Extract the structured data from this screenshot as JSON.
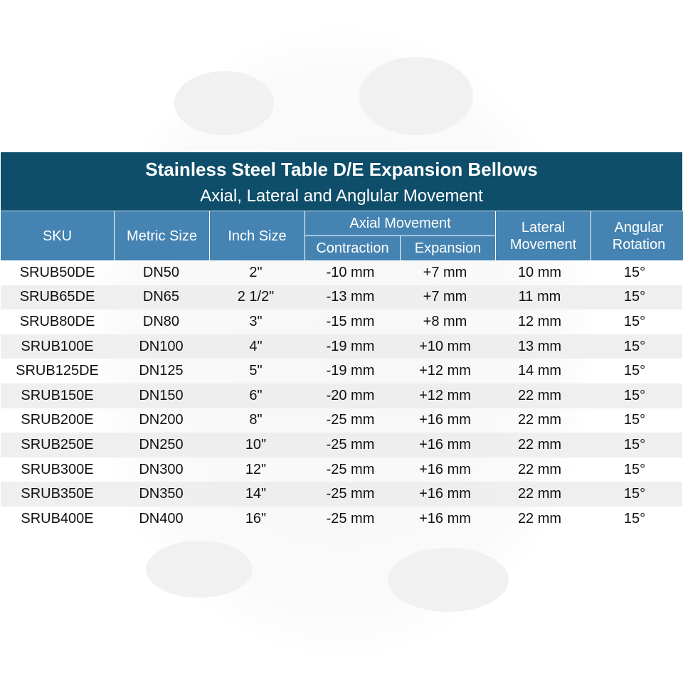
{
  "title": "Stainless Steel Table D/E Expansion Bellows",
  "subtitle": "Axial, Lateral and Anglular Movement",
  "colors": {
    "title_bg": "#0e4e6a",
    "header_bg": "#4584b2",
    "alt_row": "#ececec"
  },
  "headers": {
    "sku": "SKU",
    "metric": "Metric Size",
    "inch": "Inch Size",
    "axial": "Axial Movement",
    "contraction": "Contraction",
    "expansion": "Expansion",
    "lateral": "Lateral Movement",
    "angular": "Angular Rotation"
  },
  "rows": [
    [
      "SRUB50DE",
      "DN50",
      "2\"",
      "-10 mm",
      "+7 mm",
      "10 mm",
      "15°"
    ],
    [
      "SRUB65DE",
      "DN65",
      "2 1/2\"",
      "-13 mm",
      "+7 mm",
      "11 mm",
      "15°"
    ],
    [
      "SRUB80DE",
      "DN80",
      "3\"",
      "-15 mm",
      "+8 mm",
      "12 mm",
      "15°"
    ],
    [
      "SRUB100E",
      "DN100",
      "4\"",
      "-19 mm",
      "+10 mm",
      "13 mm",
      "15°"
    ],
    [
      "SRUB125DE",
      "DN125",
      "5\"",
      "-19 mm",
      "+12 mm",
      "14 mm",
      "15°"
    ],
    [
      "SRUB150E",
      "DN150",
      "6\"",
      "-20 mm",
      "+12 mm",
      "22 mm",
      "15°"
    ],
    [
      "SRUB200E",
      "DN200",
      "8\"",
      "-25 mm",
      "+16 mm",
      "22 mm",
      "15°"
    ],
    [
      "SRUB250E",
      "DN250",
      "10\"",
      "-25 mm",
      "+16 mm",
      "22 mm",
      "15°"
    ],
    [
      "SRUB300E",
      "DN300",
      "12\"",
      "-25 mm",
      "+16 mm",
      "22 mm",
      "15°"
    ],
    [
      "SRUB350E",
      "DN350",
      "14\"",
      "-25 mm",
      "+16 mm",
      "22 mm",
      "15°"
    ],
    [
      "SRUB400E",
      "DN400",
      "16\"",
      "-25 mm",
      "+16 mm",
      "22 mm",
      "15°"
    ]
  ]
}
